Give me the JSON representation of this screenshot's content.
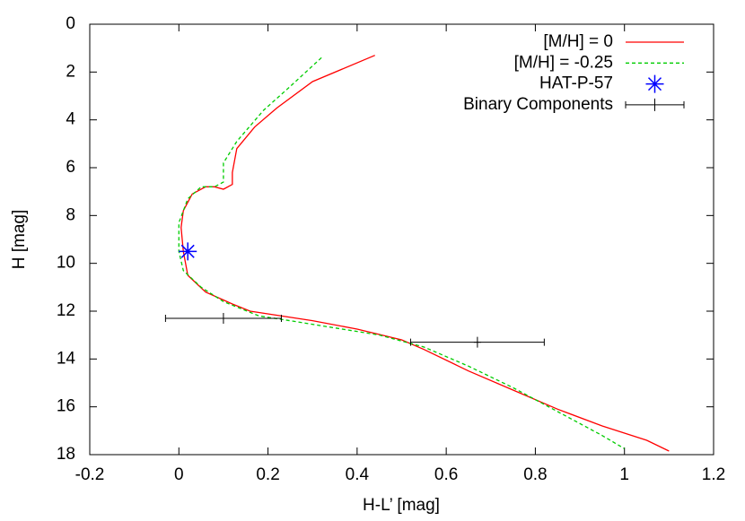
{
  "chart_data": {
    "type": "line",
    "x_label": "H-L’ [mag]",
    "y_label": "H [mag]",
    "xlim": [
      -0.2,
      1.2
    ],
    "xticks": [
      -0.2,
      0,
      0.2,
      0.4,
      0.6,
      0.8,
      1,
      1.2
    ],
    "ylim": [
      0,
      18
    ],
    "yticks": [
      0,
      2,
      4,
      6,
      8,
      10,
      12,
      14,
      16,
      18
    ],
    "y_inverted": true,
    "legend": "top-right",
    "series": [
      {
        "name": "[M/H] = 0",
        "color": "#ff0000",
        "style": "line",
        "dashed": false,
        "x": [
          0.44,
          0.3,
          0.22,
          0.17,
          0.13,
          0.12,
          0.12,
          0.1,
          0.08,
          0.06,
          0.03,
          0.01,
          0.005,
          0.01,
          0.02,
          0.06,
          0.12,
          0.16,
          0.3,
          0.4,
          0.5,
          0.55,
          0.65,
          0.75,
          0.85,
          0.95,
          1.05,
          1.1
        ],
        "values": [
          1.3,
          2.4,
          3.5,
          4.3,
          5.2,
          6.2,
          6.7,
          6.9,
          6.8,
          6.8,
          7.1,
          7.8,
          8.5,
          9.5,
          10.5,
          11.2,
          11.7,
          12.0,
          12.4,
          12.75,
          13.2,
          13.6,
          14.5,
          15.3,
          16.1,
          16.8,
          17.4,
          17.85
        ]
      },
      {
        "name": "[M/H] = -0.25",
        "color": "#00cc00",
        "style": "line",
        "dashed": true,
        "x": [
          0.32,
          0.25,
          0.19,
          0.13,
          0.1,
          0.1,
          0.08,
          0.05,
          0.02,
          0.0,
          0.0,
          0.01,
          0.05,
          0.1,
          0.18,
          0.25,
          0.35,
          0.45,
          0.55,
          0.65,
          0.75,
          0.85,
          0.95,
          1.0
        ],
        "values": [
          1.4,
          2.6,
          3.6,
          4.9,
          5.8,
          6.6,
          6.8,
          6.8,
          7.3,
          8.3,
          9.5,
          10.3,
          11.0,
          11.6,
          12.2,
          12.4,
          12.7,
          13.0,
          13.5,
          14.3,
          15.2,
          16.2,
          17.2,
          17.75
        ]
      },
      {
        "name": "HAT-P-57",
        "color": "#0000ff",
        "style": "star",
        "x": [
          0.02
        ],
        "values": [
          9.5
        ]
      },
      {
        "name": "Binary Components",
        "color": "#000000",
        "style": "errorbar",
        "x": [
          0.1,
          0.67
        ],
        "values": [
          12.3,
          13.3
        ],
        "xerr": [
          0.13,
          0.15
        ]
      }
    ]
  }
}
